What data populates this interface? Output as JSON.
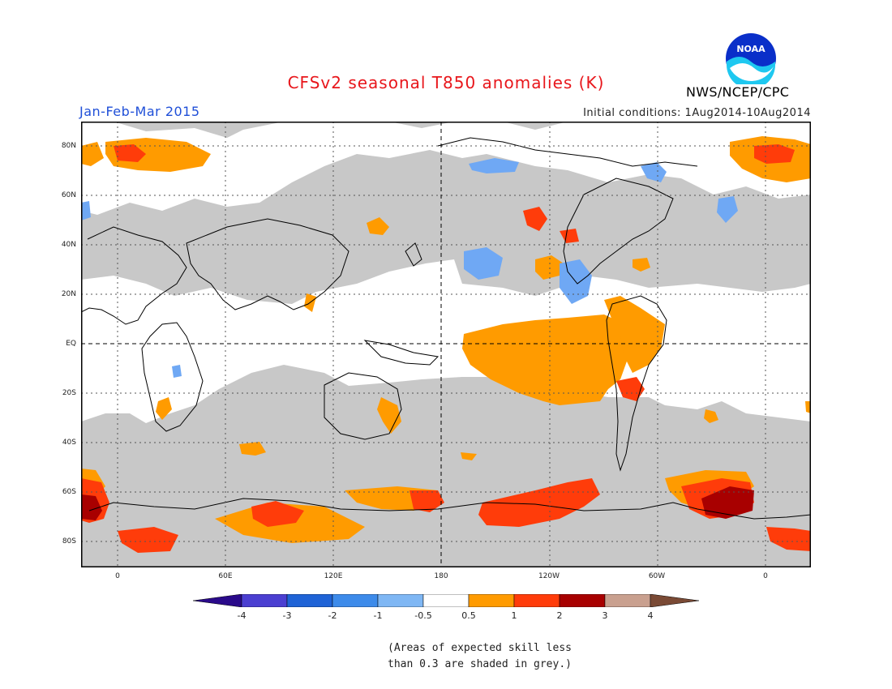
{
  "title": "CFSv2 seasonal T850 anomalies (K)",
  "period": "Jan-Feb-Mar 2015",
  "initial_conditions": "Initial conditions: 1Aug2014-10Aug2014",
  "agency": "NWS/NCEP/CPC",
  "logo_text": "NOAA",
  "lat_labels": [
    "80N",
    "60N",
    "40N",
    "20N",
    "EQ",
    "20S",
    "40S",
    "60S",
    "80S"
  ],
  "lon_labels": [
    "0",
    "60E",
    "120E",
    "180",
    "120W",
    "60W",
    "0"
  ],
  "colorbar": {
    "labels": [
      "-4",
      "-3",
      "-2",
      "-1",
      "-0.5",
      "0.5",
      "1",
      "2",
      "3",
      "4"
    ],
    "colors": [
      "#2a0a8a",
      "#4b3fd1",
      "#1f63d6",
      "#3d8bea",
      "#7fb7f4",
      "#ffffff",
      "#ff9b00",
      "#ff3c0a",
      "#a80000",
      "#c9a08f",
      "#7a4a35"
    ]
  },
  "note_lines": [
    "(Areas of expected skill less",
    "than 0.3 are shaded in grey.)"
  ],
  "anomaly_colors": {
    "grey": "#c8c8c8",
    "orange": "#ff9b00",
    "red": "#ff3c0a",
    "darkred": "#a80000",
    "blue": "#6fa8f4"
  }
}
